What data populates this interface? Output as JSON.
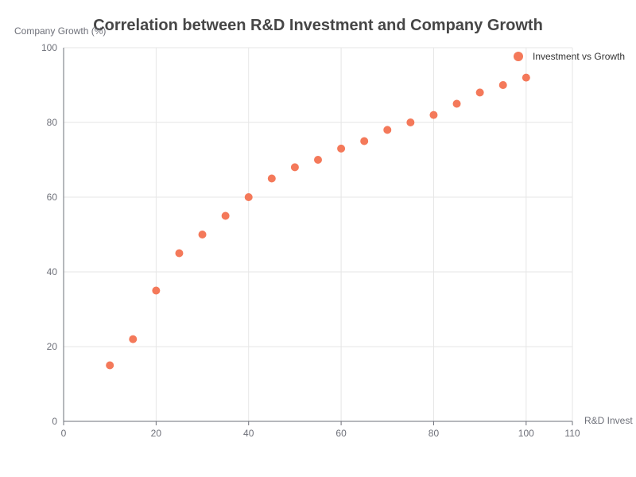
{
  "chart_data": {
    "type": "scatter",
    "title": "Correlation between R&D Investment and Company Growth",
    "xlabel": "R&D Invest",
    "ylabel": "Company Growth (%)",
    "xlim": [
      0,
      110
    ],
    "ylim": [
      0,
      100
    ],
    "x_ticks": [
      0,
      20,
      40,
      60,
      80,
      100,
      110
    ],
    "y_ticks": [
      0,
      20,
      40,
      60,
      80,
      100
    ],
    "grid": true,
    "legend_position": "top-right",
    "colors": {
      "series": "#f4795a",
      "grid": "#e6e6e6",
      "axis": "#6e7079",
      "title": "#464646"
    },
    "series": [
      {
        "name": "Investment vs Growth",
        "points": [
          [
            10,
            15
          ],
          [
            15,
            22
          ],
          [
            20,
            35
          ],
          [
            25,
            45
          ],
          [
            30,
            50
          ],
          [
            35,
            55
          ],
          [
            40,
            60
          ],
          [
            45,
            65
          ],
          [
            50,
            68
          ],
          [
            55,
            70
          ],
          [
            60,
            73
          ],
          [
            65,
            75
          ],
          [
            70,
            78
          ],
          [
            75,
            80
          ],
          [
            80,
            82
          ],
          [
            85,
            85
          ],
          [
            90,
            88
          ],
          [
            95,
            90
          ],
          [
            100,
            92
          ]
        ]
      }
    ]
  }
}
